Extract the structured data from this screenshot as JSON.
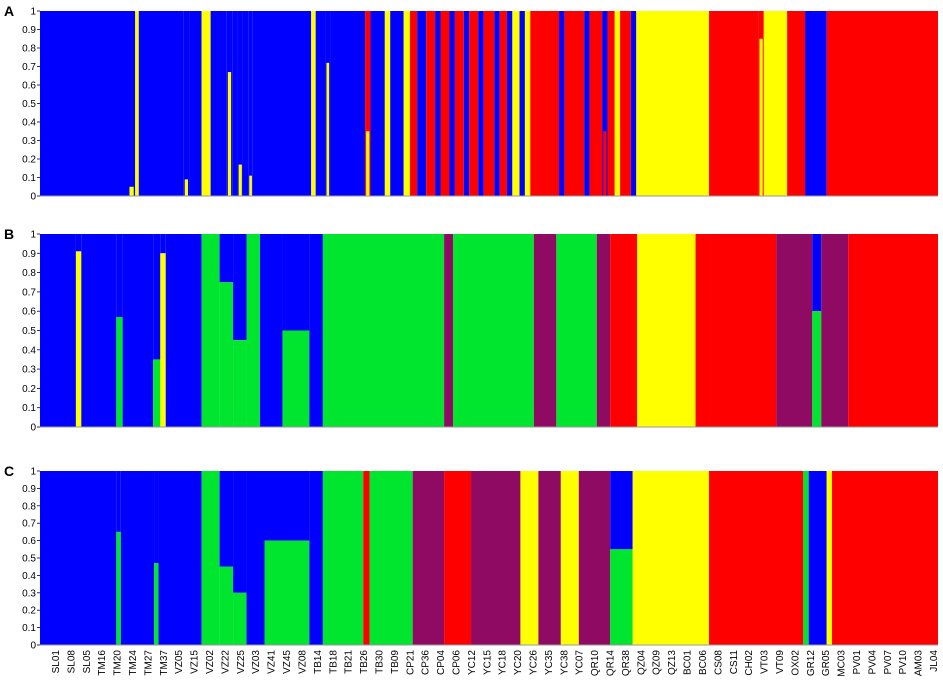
{
  "colors": {
    "blue": "#0000ff",
    "red": "#ff0000",
    "yellow": "#ffff00",
    "green": "#00e52d",
    "purple": "#8e0a63"
  },
  "chart_data": [
    {
      "type": "bar",
      "stacked": true,
      "panel": "A",
      "ylim": [
        0,
        1
      ],
      "yticks": [
        "0",
        "0.1",
        "0.2",
        "0.3",
        "0.4",
        "0.5",
        "0.6",
        "0.7",
        "0.8",
        "0.9",
        "1"
      ],
      "segments": [
        {
          "from": 0.0,
          "to": 0.098,
          "cluster": "blue"
        },
        {
          "from": 0.098,
          "to": 0.106,
          "cluster": "blue",
          "top_fraction": 0.05,
          "top": "yellow"
        },
        {
          "from": 0.106,
          "to": 0.11,
          "cluster": "yellow"
        },
        {
          "from": 0.11,
          "to": 0.16,
          "cluster": "blue"
        },
        {
          "from": 0.16,
          "to": 0.166,
          "cluster": "blue",
          "top_fraction": 0.09,
          "top": "yellow"
        },
        {
          "from": 0.166,
          "to": 0.18,
          "cluster": "blue"
        },
        {
          "from": 0.18,
          "to": 0.19,
          "cluster": "yellow"
        },
        {
          "from": 0.19,
          "to": 0.208,
          "cluster": "blue"
        },
        {
          "from": 0.208,
          "to": 0.214,
          "cluster": "blue",
          "top_fraction": 0.67,
          "top": "yellow"
        },
        {
          "from": 0.214,
          "to": 0.22,
          "cluster": "blue"
        },
        {
          "from": 0.22,
          "to": 0.226,
          "cluster": "blue",
          "top_fraction": 0.17,
          "top": "yellow"
        },
        {
          "from": 0.226,
          "to": 0.232,
          "cluster": "blue"
        },
        {
          "from": 0.232,
          "to": 0.237,
          "cluster": "blue",
          "top_fraction": 0.11,
          "top": "yellow"
        },
        {
          "from": 0.237,
          "to": 0.302,
          "cluster": "blue"
        },
        {
          "from": 0.302,
          "to": 0.307,
          "cluster": "yellow"
        },
        {
          "from": 0.307,
          "to": 0.318,
          "cluster": "blue"
        },
        {
          "from": 0.318,
          "to": 0.323,
          "cluster": "blue",
          "top_fraction": 0.72,
          "top": "yellow"
        },
        {
          "from": 0.323,
          "to": 0.362,
          "cluster": "blue"
        },
        {
          "from": 0.362,
          "to": 0.368,
          "cluster": "red",
          "top": "yellow",
          "top_fraction": 0.35
        },
        {
          "from": 0.368,
          "to": 0.384,
          "cluster": "blue"
        },
        {
          "from": 0.384,
          "to": 0.39,
          "cluster": "yellow"
        },
        {
          "from": 0.39,
          "to": 0.405,
          "cluster": "blue"
        },
        {
          "from": 0.405,
          "to": 0.412,
          "cluster": "yellow"
        },
        {
          "from": 0.412,
          "to": 0.42,
          "cluster": "red"
        },
        {
          "from": 0.42,
          "to": 0.43,
          "cluster": "blue"
        },
        {
          "from": 0.43,
          "to": 0.44,
          "cluster": "red"
        },
        {
          "from": 0.44,
          "to": 0.446,
          "cluster": "blue"
        },
        {
          "from": 0.446,
          "to": 0.456,
          "cluster": "red"
        },
        {
          "from": 0.456,
          "to": 0.462,
          "cluster": "blue"
        },
        {
          "from": 0.462,
          "to": 0.472,
          "cluster": "red"
        },
        {
          "from": 0.472,
          "to": 0.478,
          "cluster": "blue"
        },
        {
          "from": 0.478,
          "to": 0.488,
          "cluster": "red"
        },
        {
          "from": 0.488,
          "to": 0.494,
          "cluster": "blue"
        },
        {
          "from": 0.494,
          "to": 0.506,
          "cluster": "red"
        },
        {
          "from": 0.506,
          "to": 0.512,
          "cluster": "blue"
        },
        {
          "from": 0.512,
          "to": 0.52,
          "cluster": "red"
        },
        {
          "from": 0.52,
          "to": 0.526,
          "cluster": "blue"
        },
        {
          "from": 0.526,
          "to": 0.534,
          "cluster": "yellow"
        },
        {
          "from": 0.534,
          "to": 0.54,
          "cluster": "blue"
        },
        {
          "from": 0.54,
          "to": 0.546,
          "cluster": "yellow"
        },
        {
          "from": 0.546,
          "to": 0.578,
          "cluster": "red"
        },
        {
          "from": 0.578,
          "to": 0.584,
          "cluster": "blue"
        },
        {
          "from": 0.584,
          "to": 0.606,
          "cluster": "red"
        },
        {
          "from": 0.606,
          "to": 0.612,
          "cluster": "blue"
        },
        {
          "from": 0.612,
          "to": 0.626,
          "cluster": "red"
        },
        {
          "from": 0.626,
          "to": 0.632,
          "cluster": "blue",
          "top": "red",
          "top_fraction": 0.35
        },
        {
          "from": 0.632,
          "to": 0.64,
          "cluster": "red"
        },
        {
          "from": 0.64,
          "to": 0.646,
          "cluster": "yellow"
        },
        {
          "from": 0.646,
          "to": 0.658,
          "cluster": "red"
        },
        {
          "from": 0.658,
          "to": 0.664,
          "cluster": "blue"
        },
        {
          "from": 0.664,
          "to": 0.745,
          "cluster": "yellow"
        },
        {
          "from": 0.745,
          "to": 0.8,
          "cluster": "red"
        },
        {
          "from": 0.8,
          "to": 0.806,
          "cluster": "red",
          "top": "yellow",
          "top_fraction": 0.85
        },
        {
          "from": 0.806,
          "to": 0.832,
          "cluster": "yellow"
        },
        {
          "from": 0.832,
          "to": 0.852,
          "cluster": "red"
        },
        {
          "from": 0.852,
          "to": 0.876,
          "cluster": "blue"
        },
        {
          "from": 0.876,
          "to": 1.0,
          "cluster": "red"
        }
      ]
    },
    {
      "type": "bar",
      "stacked": true,
      "panel": "B",
      "ylim": [
        0,
        1
      ],
      "yticks": [
        "0",
        "0.1",
        "0.2",
        "0.3",
        "0.4",
        "0.5",
        "0.6",
        "0.7",
        "0.8",
        "0.9",
        "1"
      ],
      "segments": [
        {
          "from": 0.0,
          "to": 0.04,
          "cluster": "blue"
        },
        {
          "from": 0.04,
          "to": 0.046,
          "cluster": "yellow",
          "base": "blue",
          "value": 0.91
        },
        {
          "from": 0.046,
          "to": 0.085,
          "cluster": "blue"
        },
        {
          "from": 0.085,
          "to": 0.092,
          "cluster": "green",
          "value": 0.57
        },
        {
          "from": 0.092,
          "to": 0.126,
          "cluster": "blue"
        },
        {
          "from": 0.126,
          "to": 0.134,
          "cluster": "green",
          "value": 0.35
        },
        {
          "from": 0.134,
          "to": 0.14,
          "cluster": "yellow",
          "value": 0.9
        },
        {
          "from": 0.14,
          "to": 0.18,
          "cluster": "blue"
        },
        {
          "from": 0.18,
          "to": 0.2,
          "cluster": "green"
        },
        {
          "from": 0.2,
          "to": 0.215,
          "cluster": "green",
          "value": 0.75
        },
        {
          "from": 0.215,
          "to": 0.23,
          "cluster": "green",
          "value": 0.45
        },
        {
          "from": 0.23,
          "to": 0.245,
          "cluster": "green"
        },
        {
          "from": 0.245,
          "to": 0.27,
          "cluster": "blue"
        },
        {
          "from": 0.27,
          "to": 0.3,
          "cluster": "green",
          "value": 0.5
        },
        {
          "from": 0.3,
          "to": 0.315,
          "cluster": "blue"
        },
        {
          "from": 0.315,
          "to": 0.45,
          "cluster": "green"
        },
        {
          "from": 0.45,
          "to": 0.46,
          "cluster": "purple"
        },
        {
          "from": 0.46,
          "to": 0.55,
          "cluster": "green"
        },
        {
          "from": 0.55,
          "to": 0.575,
          "cluster": "purple"
        },
        {
          "from": 0.575,
          "to": 0.62,
          "cluster": "green"
        },
        {
          "from": 0.62,
          "to": 0.635,
          "cluster": "purple"
        },
        {
          "from": 0.635,
          "to": 0.665,
          "cluster": "red"
        },
        {
          "from": 0.665,
          "to": 0.73,
          "cluster": "yellow"
        },
        {
          "from": 0.73,
          "to": 0.745,
          "cluster": "red"
        },
        {
          "from": 0.745,
          "to": 0.82,
          "cluster": "red"
        },
        {
          "from": 0.82,
          "to": 0.86,
          "cluster": "purple"
        },
        {
          "from": 0.86,
          "to": 0.87,
          "cluster": "green",
          "value": 0.6
        },
        {
          "from": 0.87,
          "to": 0.9,
          "cluster": "purple"
        },
        {
          "from": 0.9,
          "to": 1.0,
          "cluster": "red"
        }
      ]
    },
    {
      "type": "bar",
      "stacked": true,
      "panel": "C",
      "ylim": [
        0,
        1
      ],
      "yticks": [
        "0",
        "0.1",
        "0.2",
        "0.3",
        "0.4",
        "0.5",
        "0.6",
        "0.7",
        "0.8",
        "0.9",
        "1"
      ],
      "segments": [
        {
          "from": 0.0,
          "to": 0.085,
          "cluster": "blue"
        },
        {
          "from": 0.085,
          "to": 0.09,
          "cluster": "green",
          "value": 0.65
        },
        {
          "from": 0.09,
          "to": 0.127,
          "cluster": "blue"
        },
        {
          "from": 0.127,
          "to": 0.132,
          "cluster": "green",
          "value": 0.47
        },
        {
          "from": 0.132,
          "to": 0.18,
          "cluster": "blue"
        },
        {
          "from": 0.18,
          "to": 0.2,
          "cluster": "green"
        },
        {
          "from": 0.2,
          "to": 0.215,
          "cluster": "green",
          "value": 0.45
        },
        {
          "from": 0.215,
          "to": 0.23,
          "cluster": "green",
          "value": 0.3
        },
        {
          "from": 0.23,
          "to": 0.25,
          "cluster": "blue"
        },
        {
          "from": 0.25,
          "to": 0.3,
          "cluster": "green",
          "value": 0.6
        },
        {
          "from": 0.3,
          "to": 0.315,
          "cluster": "blue"
        },
        {
          "from": 0.315,
          "to": 0.36,
          "cluster": "green"
        },
        {
          "from": 0.36,
          "to": 0.367,
          "cluster": "red"
        },
        {
          "from": 0.367,
          "to": 0.415,
          "cluster": "green"
        },
        {
          "from": 0.415,
          "to": 0.45,
          "cluster": "purple"
        },
        {
          "from": 0.45,
          "to": 0.48,
          "cluster": "red"
        },
        {
          "from": 0.48,
          "to": 0.535,
          "cluster": "purple"
        },
        {
          "from": 0.535,
          "to": 0.555,
          "cluster": "yellow"
        },
        {
          "from": 0.555,
          "to": 0.58,
          "cluster": "purple"
        },
        {
          "from": 0.58,
          "to": 0.6,
          "cluster": "yellow"
        },
        {
          "from": 0.6,
          "to": 0.635,
          "cluster": "purple"
        },
        {
          "from": 0.635,
          "to": 0.66,
          "cluster": "green",
          "value": 0.55
        },
        {
          "from": 0.66,
          "to": 0.745,
          "cluster": "yellow"
        },
        {
          "from": 0.745,
          "to": 0.85,
          "cluster": "red"
        },
        {
          "from": 0.85,
          "to": 0.856,
          "cluster": "green"
        },
        {
          "from": 0.856,
          "to": 0.876,
          "cluster": "blue"
        },
        {
          "from": 0.876,
          "to": 0.882,
          "cluster": "yellow"
        },
        {
          "from": 0.882,
          "to": 1.0,
          "cluster": "red"
        }
      ]
    }
  ],
  "panels": [
    "A",
    "B",
    "C"
  ],
  "x_tick_labels": [
    "SL01",
    "SL08",
    "SL05",
    "TM16",
    "TM20",
    "TM24",
    "TM27",
    "TM37",
    "VZ05",
    "VZ15",
    "VZ02",
    "VZ22",
    "VZ25",
    "VZ03",
    "VZ41",
    "VZ45",
    "VZ08",
    "TB14",
    "TB18",
    "TB21",
    "TB26",
    "TB30",
    "TB09",
    "CP21",
    "CP36",
    "CP04",
    "CP06",
    "YC12",
    "YC15",
    "YC18",
    "YC20",
    "YC26",
    "YC35",
    "YC38",
    "YC07",
    "QR10",
    "QR14",
    "QR38",
    "QZ04",
    "QZ09",
    "QZ13",
    "BC01",
    "BC06",
    "CS08",
    "CS11",
    "CH02",
    "VT03",
    "VT09",
    "OX02",
    "GR12",
    "GR05",
    "MC03",
    "PV01",
    "PV04",
    "PV07",
    "PV10",
    "AM03",
    "JL04"
  ]
}
